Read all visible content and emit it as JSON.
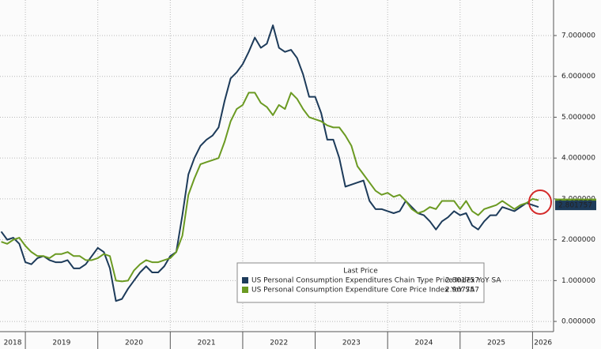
{
  "chart_data": {
    "type": "line",
    "x": [
      2018.667,
      2018.75,
      2018.833,
      2018.917,
      2019.0,
      2019.083,
      2019.167,
      2019.25,
      2019.333,
      2019.417,
      2019.5,
      2019.583,
      2019.667,
      2019.75,
      2019.833,
      2019.917,
      2020.0,
      2020.083,
      2020.167,
      2020.25,
      2020.333,
      2020.417,
      2020.5,
      2020.583,
      2020.667,
      2020.75,
      2020.833,
      2020.917,
      2021.0,
      2021.083,
      2021.167,
      2021.25,
      2021.333,
      2021.417,
      2021.5,
      2021.583,
      2021.667,
      2021.75,
      2021.833,
      2021.917,
      2022.0,
      2022.083,
      2022.167,
      2022.25,
      2022.333,
      2022.417,
      2022.5,
      2022.583,
      2022.667,
      2022.75,
      2022.833,
      2022.917,
      2023.0,
      2023.083,
      2023.167,
      2023.25,
      2023.333,
      2023.417,
      2023.5,
      2023.583,
      2023.667,
      2023.75,
      2023.833,
      2023.917,
      2024.0,
      2024.083,
      2024.167,
      2024.25,
      2024.333,
      2024.417,
      2024.5,
      2024.583,
      2024.667,
      2024.75,
      2024.833,
      2024.917,
      2025.0,
      2025.083,
      2025.167,
      2025.25,
      2025.333,
      2025.417,
      2025.5,
      2025.583,
      2025.667,
      2025.75,
      2025.833,
      2025.917,
      2026.0,
      2026.083
    ],
    "series": [
      {
        "name": "US Personal Consumption Expenditures Chain Type Price Index YoY SA",
        "color": "#1d3b5a",
        "values": [
          2.2,
          2.0,
          2.05,
          1.9,
          1.45,
          1.4,
          1.55,
          1.6,
          1.5,
          1.45,
          1.45,
          1.5,
          1.3,
          1.3,
          1.4,
          1.6,
          1.8,
          1.7,
          1.3,
          0.5,
          0.55,
          0.8,
          1.0,
          1.2,
          1.35,
          1.2,
          1.2,
          1.35,
          1.6,
          1.7,
          2.6,
          3.6,
          4.0,
          4.3,
          4.45,
          4.55,
          4.75,
          5.4,
          5.95,
          6.1,
          6.3,
          6.6,
          6.95,
          6.7,
          6.8,
          7.25,
          6.7,
          6.6,
          6.65,
          6.45,
          6.05,
          5.5,
          5.5,
          5.1,
          4.45,
          4.45,
          4.0,
          3.3,
          3.35,
          3.4,
          3.45,
          2.95,
          2.75,
          2.75,
          2.7,
          2.65,
          2.7,
          2.95,
          2.8,
          2.65,
          2.6,
          2.45,
          2.25,
          2.45,
          2.55,
          2.7,
          2.6,
          2.65,
          2.35,
          2.25,
          2.45,
          2.6,
          2.6,
          2.8,
          2.75,
          2.7,
          2.8,
          2.9,
          2.85,
          2.801757
        ]
      },
      {
        "name": "US Personal Consumption Expenditure Core Price Index YoY SA",
        "color": "#6b9a22",
        "values": [
          1.95,
          1.9,
          2.0,
          2.05,
          1.85,
          1.7,
          1.6,
          1.6,
          1.55,
          1.65,
          1.65,
          1.7,
          1.6,
          1.6,
          1.5,
          1.5,
          1.55,
          1.65,
          1.6,
          1.0,
          0.98,
          1.0,
          1.25,
          1.4,
          1.5,
          1.45,
          1.45,
          1.5,
          1.55,
          1.7,
          2.1,
          3.1,
          3.5,
          3.85,
          3.9,
          3.95,
          4.0,
          4.4,
          4.9,
          5.2,
          5.3,
          5.6,
          5.6,
          5.35,
          5.25,
          5.05,
          5.3,
          5.2,
          5.6,
          5.45,
          5.2,
          5.0,
          4.95,
          4.9,
          4.8,
          4.75,
          4.75,
          4.55,
          4.3,
          3.8,
          3.6,
          3.4,
          3.2,
          3.1,
          3.15,
          3.05,
          3.1,
          2.95,
          2.75,
          2.65,
          2.7,
          2.8,
          2.75,
          2.95,
          2.95,
          2.95,
          2.75,
          2.95,
          2.7,
          2.6,
          2.75,
          2.8,
          2.85,
          2.95,
          2.85,
          2.75,
          2.85,
          2.9,
          3.0,
          2.967757
        ]
      }
    ],
    "legend_title": "Last Price",
    "xlim": [
      2018.65,
      2026.29
    ],
    "xticks": [
      2018,
      2019,
      2020,
      2021,
      2022,
      2023,
      2024,
      2025,
      2026
    ],
    "ylim": [
      -0.25,
      7.87
    ],
    "yticks": [
      {
        "value": 0,
        "label": "0.000000"
      },
      {
        "value": 1,
        "label": "1.000000"
      },
      {
        "value": 2,
        "label": "2.000000"
      },
      {
        "value": 3,
        "label": "3.000000"
      },
      {
        "value": 4,
        "label": "4.000000"
      },
      {
        "value": 5,
        "label": "5.000000"
      },
      {
        "value": 6,
        "label": "6.000000"
      },
      {
        "value": 7,
        "label": "7.000000"
      }
    ],
    "grid": true
  }
}
